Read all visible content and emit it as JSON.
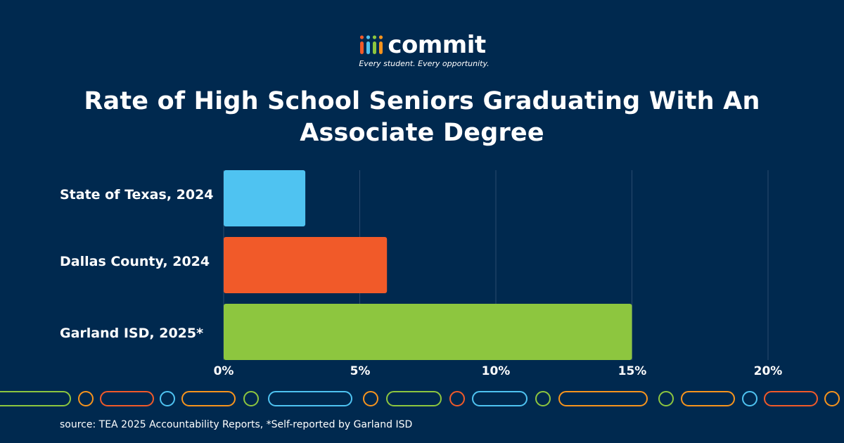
{
  "brand": {
    "name": "commit",
    "tagline": "Every student. Every opportunity.",
    "mark_colors": [
      "#f15a29",
      "#4fc3f1",
      "#8dc63f",
      "#f7941d"
    ]
  },
  "title": "Rate of High School Seniors Graduating With An Associate Degree",
  "chart_data": {
    "type": "bar",
    "orientation": "horizontal",
    "categories": [
      "State of Texas, 2024",
      "Dallas County, 2024",
      "Garland ISD, 2025*"
    ],
    "values": [
      3,
      6,
      15
    ],
    "colors": [
      "#4fc3f1",
      "#f15a29",
      "#8dc63f"
    ],
    "xlim": [
      0,
      20
    ],
    "xticks": [
      "0%",
      "5%",
      "10%",
      "15%",
      "20%"
    ],
    "grid": true,
    "xlabel": "",
    "ylabel": ""
  },
  "decoration": {
    "outline_colors": [
      "#8dc63f",
      "#f7941d",
      "#f15a29",
      "#4fc3f1"
    ]
  },
  "source": "source: TEA 2025 Accountability Reports, *Self-reported by Garland ISD"
}
